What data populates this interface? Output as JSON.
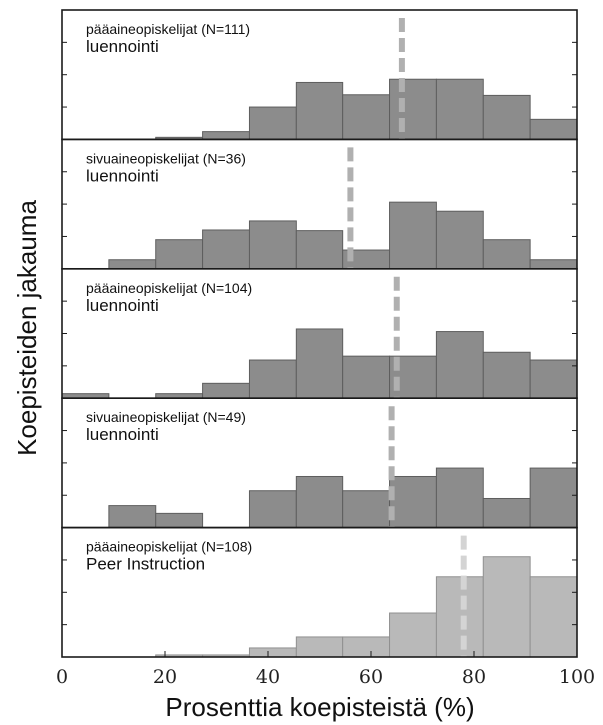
{
  "chart_data": {
    "type": "bar",
    "xlabel": "Prosenttia koepisteistä (%)",
    "ylabel": "Koepisteiden jakauma",
    "xlim": [
      0,
      100
    ],
    "xticks": [
      0,
      20,
      40,
      60,
      80,
      100
    ],
    "bins": [
      0,
      9.1,
      18.2,
      27.3,
      36.4,
      45.5,
      54.5,
      63.6,
      72.7,
      81.8,
      90.9,
      100
    ],
    "colors": {
      "dark": "#8c8c8c",
      "light": "#b9b9b9",
      "mean_dark": "#b0b0b0",
      "mean_light": "#d4d4d4"
    },
    "panels": [
      {
        "label_small": "pääaineopiskelijat (N=111)",
        "label_large": "luennointi",
        "shade": "dark",
        "mean": 66,
        "values": [
          0,
          0,
          0.016,
          0.06,
          0.25,
          0.44,
          0.345,
          0.465,
          0.465,
          0.34,
          0.155
        ]
      },
      {
        "label_small": "sivuaineopiskelijat (N=36)",
        "label_large": "luennointi",
        "shade": "dark",
        "mean": 56,
        "values": [
          0,
          0.07,
          0.225,
          0.3,
          0.37,
          0.295,
          0.145,
          0.515,
          0.445,
          0.225,
          0.07
        ]
      },
      {
        "label_small": "pääaineopiskelijat (N=104)",
        "label_large": "luennointi",
        "shade": "dark",
        "mean": 65,
        "values": [
          0.035,
          0,
          0.035,
          0.115,
          0.295,
          0.535,
          0.325,
          0.325,
          0.515,
          0.355,
          0.295
        ]
      },
      {
        "label_small": "sivuaineopiskelijat (N=49)",
        "label_large": "luennointi",
        "shade": "dark",
        "mean": 64,
        "values": [
          0,
          0.17,
          0.11,
          0,
          0.285,
          0.395,
          0.285,
          0.395,
          0.46,
          0.225,
          0.46
        ]
      },
      {
        "label_small": "pääaineopiskelijat (N=108)",
        "label_large": "Peer Instruction",
        "shade": "light",
        "mean": 78,
        "values": [
          0,
          0,
          0.016,
          0.016,
          0.07,
          0.155,
          0.155,
          0.34,
          0.62,
          0.775,
          0.62
        ]
      }
    ]
  }
}
